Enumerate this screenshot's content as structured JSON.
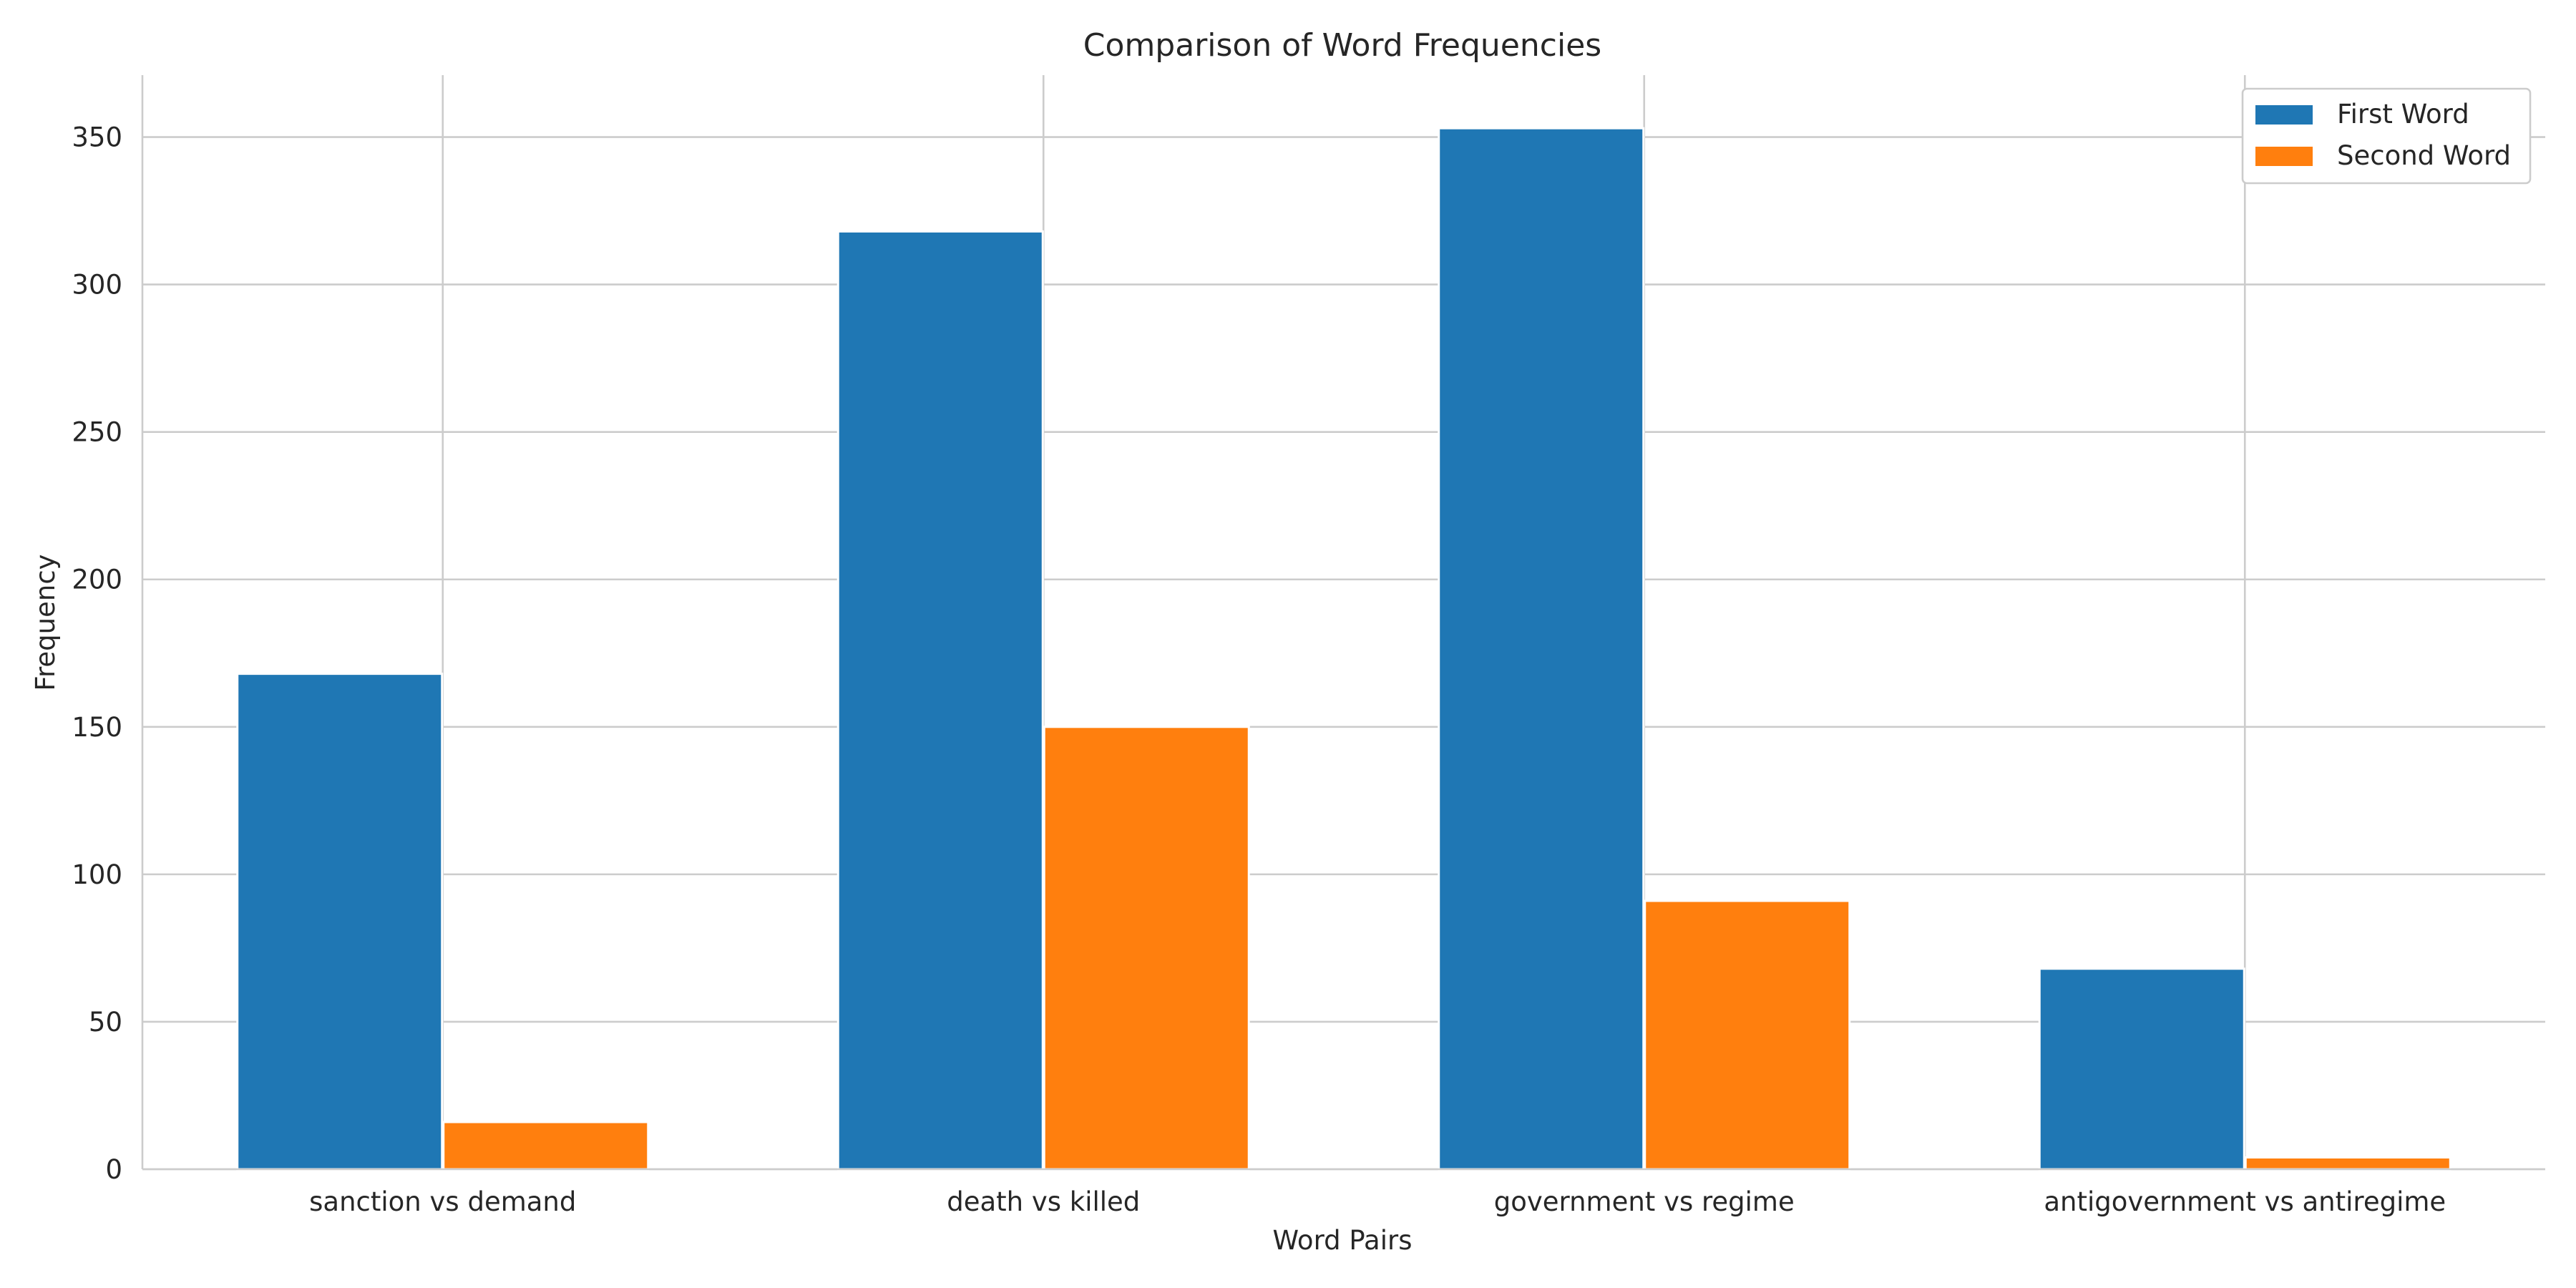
{
  "chart_data": {
    "type": "bar",
    "title": "Comparison of Word Frequencies",
    "xlabel": "Word Pairs",
    "ylabel": "Frequency",
    "categories": [
      "sanction vs demand",
      "death vs killed",
      "government vs regime",
      "antigovernment vs antiregime"
    ],
    "series": [
      {
        "name": "First Word",
        "values": [
          168,
          318,
          353,
          68
        ],
        "color": "#1f77b4"
      },
      {
        "name": "Second Word",
        "values": [
          16,
          150,
          91,
          4
        ],
        "color": "#ff7f0e"
      }
    ],
    "ylim": [
      0,
      371
    ],
    "yticks": [
      0,
      50,
      100,
      150,
      200,
      250,
      300,
      350
    ],
    "grid": true,
    "legend_position": "top-right"
  }
}
